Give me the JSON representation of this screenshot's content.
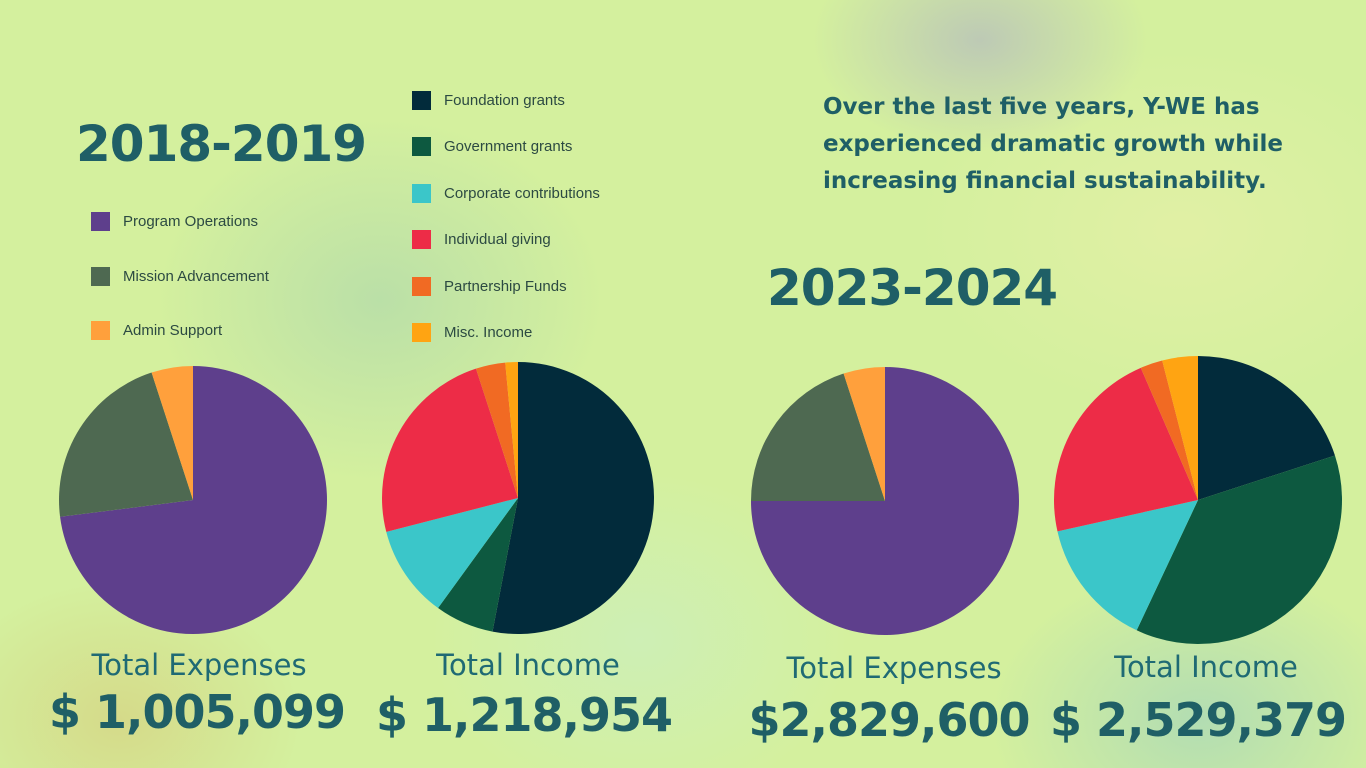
{
  "colors": {
    "program_operations": "#5e3f8c",
    "mission_advancement": "#4e6951",
    "admin_support": "#ffa03c",
    "foundation_grants": "#022b3b",
    "government_grants": "#0d5940",
    "corporate_contributions": "#3bc6c9",
    "individual_giving": "#ed2c47",
    "partnership_funds": "#f16a23",
    "misc_income": "#ffa412"
  },
  "intro_text": "Over the last five years, Y-WE has experienced dramatic growth while increasing financial sustainability.",
  "period_2018": {
    "label": "2018-2019",
    "expenses_caption": "Total Expenses",
    "expenses_amount": "$ 1,005,099",
    "income_caption": "Total Income",
    "income_amount": "$ 1,218,954"
  },
  "period_2023": {
    "label": "2023-2024",
    "expenses_caption": "Total Expenses",
    "expenses_amount": "$2,829,600",
    "income_caption": "Total Income",
    "income_amount": "$ 2,529,379"
  },
  "expense_legend": [
    {
      "label": "Program Operations",
      "color": "#5e3f8c"
    },
    {
      "label": "Mission Advancement",
      "color": "#4e6951"
    },
    {
      "label": "Admin Support",
      "color": "#ffa03c"
    }
  ],
  "income_legend": [
    {
      "label": "Foundation grants",
      "color": "#022b3b"
    },
    {
      "label": "Government grants",
      "color": "#0d5940"
    },
    {
      "label": "Corporate contributions",
      "color": "#3bc6c9"
    },
    {
      "label": "Individual giving",
      "color": "#ed2c47"
    },
    {
      "label": "Partnership Funds",
      "color": "#f16a23"
    },
    {
      "label": "Misc. Income",
      "color": "#ffa412"
    }
  ],
  "chart_data": [
    {
      "type": "pie",
      "title": "Total Expenses",
      "period": "2018-2019",
      "categories": [
        "Program Operations",
        "Mission Advancement",
        "Admin Support"
      ],
      "values": [
        73,
        22,
        5
      ],
      "unit": "%",
      "direction": "clockwise from 12 o'clock"
    },
    {
      "type": "pie",
      "title": "Total Income",
      "period": "2018-2019",
      "categories": [
        "Foundation grants",
        "Government grants",
        "Corporate contributions",
        "Individual giving",
        "Partnership Funds",
        "Misc. Income"
      ],
      "values": [
        53,
        7,
        11,
        24,
        3.5,
        1.5
      ],
      "unit": "%",
      "direction": "clockwise from 12 o'clock"
    },
    {
      "type": "pie",
      "title": "Total Expenses",
      "period": "2023-2024",
      "categories": [
        "Program Operations",
        "Mission Advancement",
        "Admin Support"
      ],
      "values": [
        75,
        20,
        5
      ],
      "unit": "%",
      "direction": "clockwise from 12 o'clock"
    },
    {
      "type": "pie",
      "title": "Total Income",
      "period": "2023-2024",
      "categories": [
        "Foundation grants",
        "Government grants",
        "Corporate contributions",
        "Individual giving",
        "Partnership Funds",
        "Misc. Income"
      ],
      "values": [
        20,
        37,
        14.5,
        22,
        2.5,
        4
      ],
      "unit": "%",
      "direction": "clockwise from 12 o'clock"
    }
  ]
}
